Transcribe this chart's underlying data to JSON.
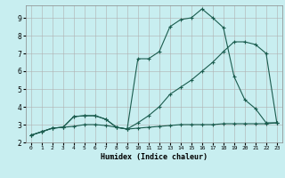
{
  "xlabel": "Humidex (Indice chaleur)",
  "xlim": [
    -0.5,
    23.5
  ],
  "ylim": [
    2.0,
    9.7
  ],
  "xticks": [
    0,
    1,
    2,
    3,
    4,
    5,
    6,
    7,
    8,
    9,
    10,
    11,
    12,
    13,
    14,
    15,
    16,
    17,
    18,
    19,
    20,
    21,
    22,
    23
  ],
  "yticks": [
    2,
    3,
    4,
    5,
    6,
    7,
    8,
    9
  ],
  "bg_color": "#c8eef0",
  "grid_color": "#b0b0b0",
  "line_color": "#1a5c4e",
  "line1_x": [
    0,
    1,
    2,
    3,
    4,
    5,
    6,
    7,
    8,
    9,
    10,
    11,
    12,
    13,
    14,
    15,
    16,
    17,
    18,
    19,
    20,
    21,
    22,
    23
  ],
  "line1_y": [
    2.4,
    2.6,
    2.8,
    2.85,
    3.45,
    3.5,
    3.5,
    3.3,
    2.85,
    2.75,
    6.7,
    6.7,
    7.1,
    8.5,
    8.9,
    9.0,
    9.5,
    9.0,
    8.45,
    5.7,
    4.4,
    3.9,
    3.1,
    3.1
  ],
  "line2_x": [
    0,
    1,
    2,
    3,
    4,
    5,
    6,
    7,
    8,
    9,
    10,
    11,
    12,
    13,
    14,
    15,
    16,
    17,
    18,
    19,
    20,
    21,
    22,
    23
  ],
  "line2_y": [
    2.4,
    2.6,
    2.8,
    2.85,
    3.45,
    3.5,
    3.5,
    3.3,
    2.85,
    2.75,
    3.1,
    3.5,
    4.0,
    4.7,
    5.1,
    5.5,
    6.0,
    6.5,
    7.1,
    7.65,
    7.65,
    7.5,
    7.0,
    3.1
  ],
  "line3_x": [
    0,
    1,
    2,
    3,
    4,
    5,
    6,
    7,
    8,
    9,
    10,
    11,
    12,
    13,
    14,
    15,
    16,
    17,
    18,
    19,
    20,
    21,
    22,
    23
  ],
  "line3_y": [
    2.4,
    2.6,
    2.8,
    2.85,
    2.9,
    3.0,
    3.0,
    2.95,
    2.85,
    2.75,
    2.8,
    2.85,
    2.9,
    2.95,
    3.0,
    3.0,
    3.0,
    3.0,
    3.05,
    3.05,
    3.05,
    3.05,
    3.05,
    3.1
  ]
}
